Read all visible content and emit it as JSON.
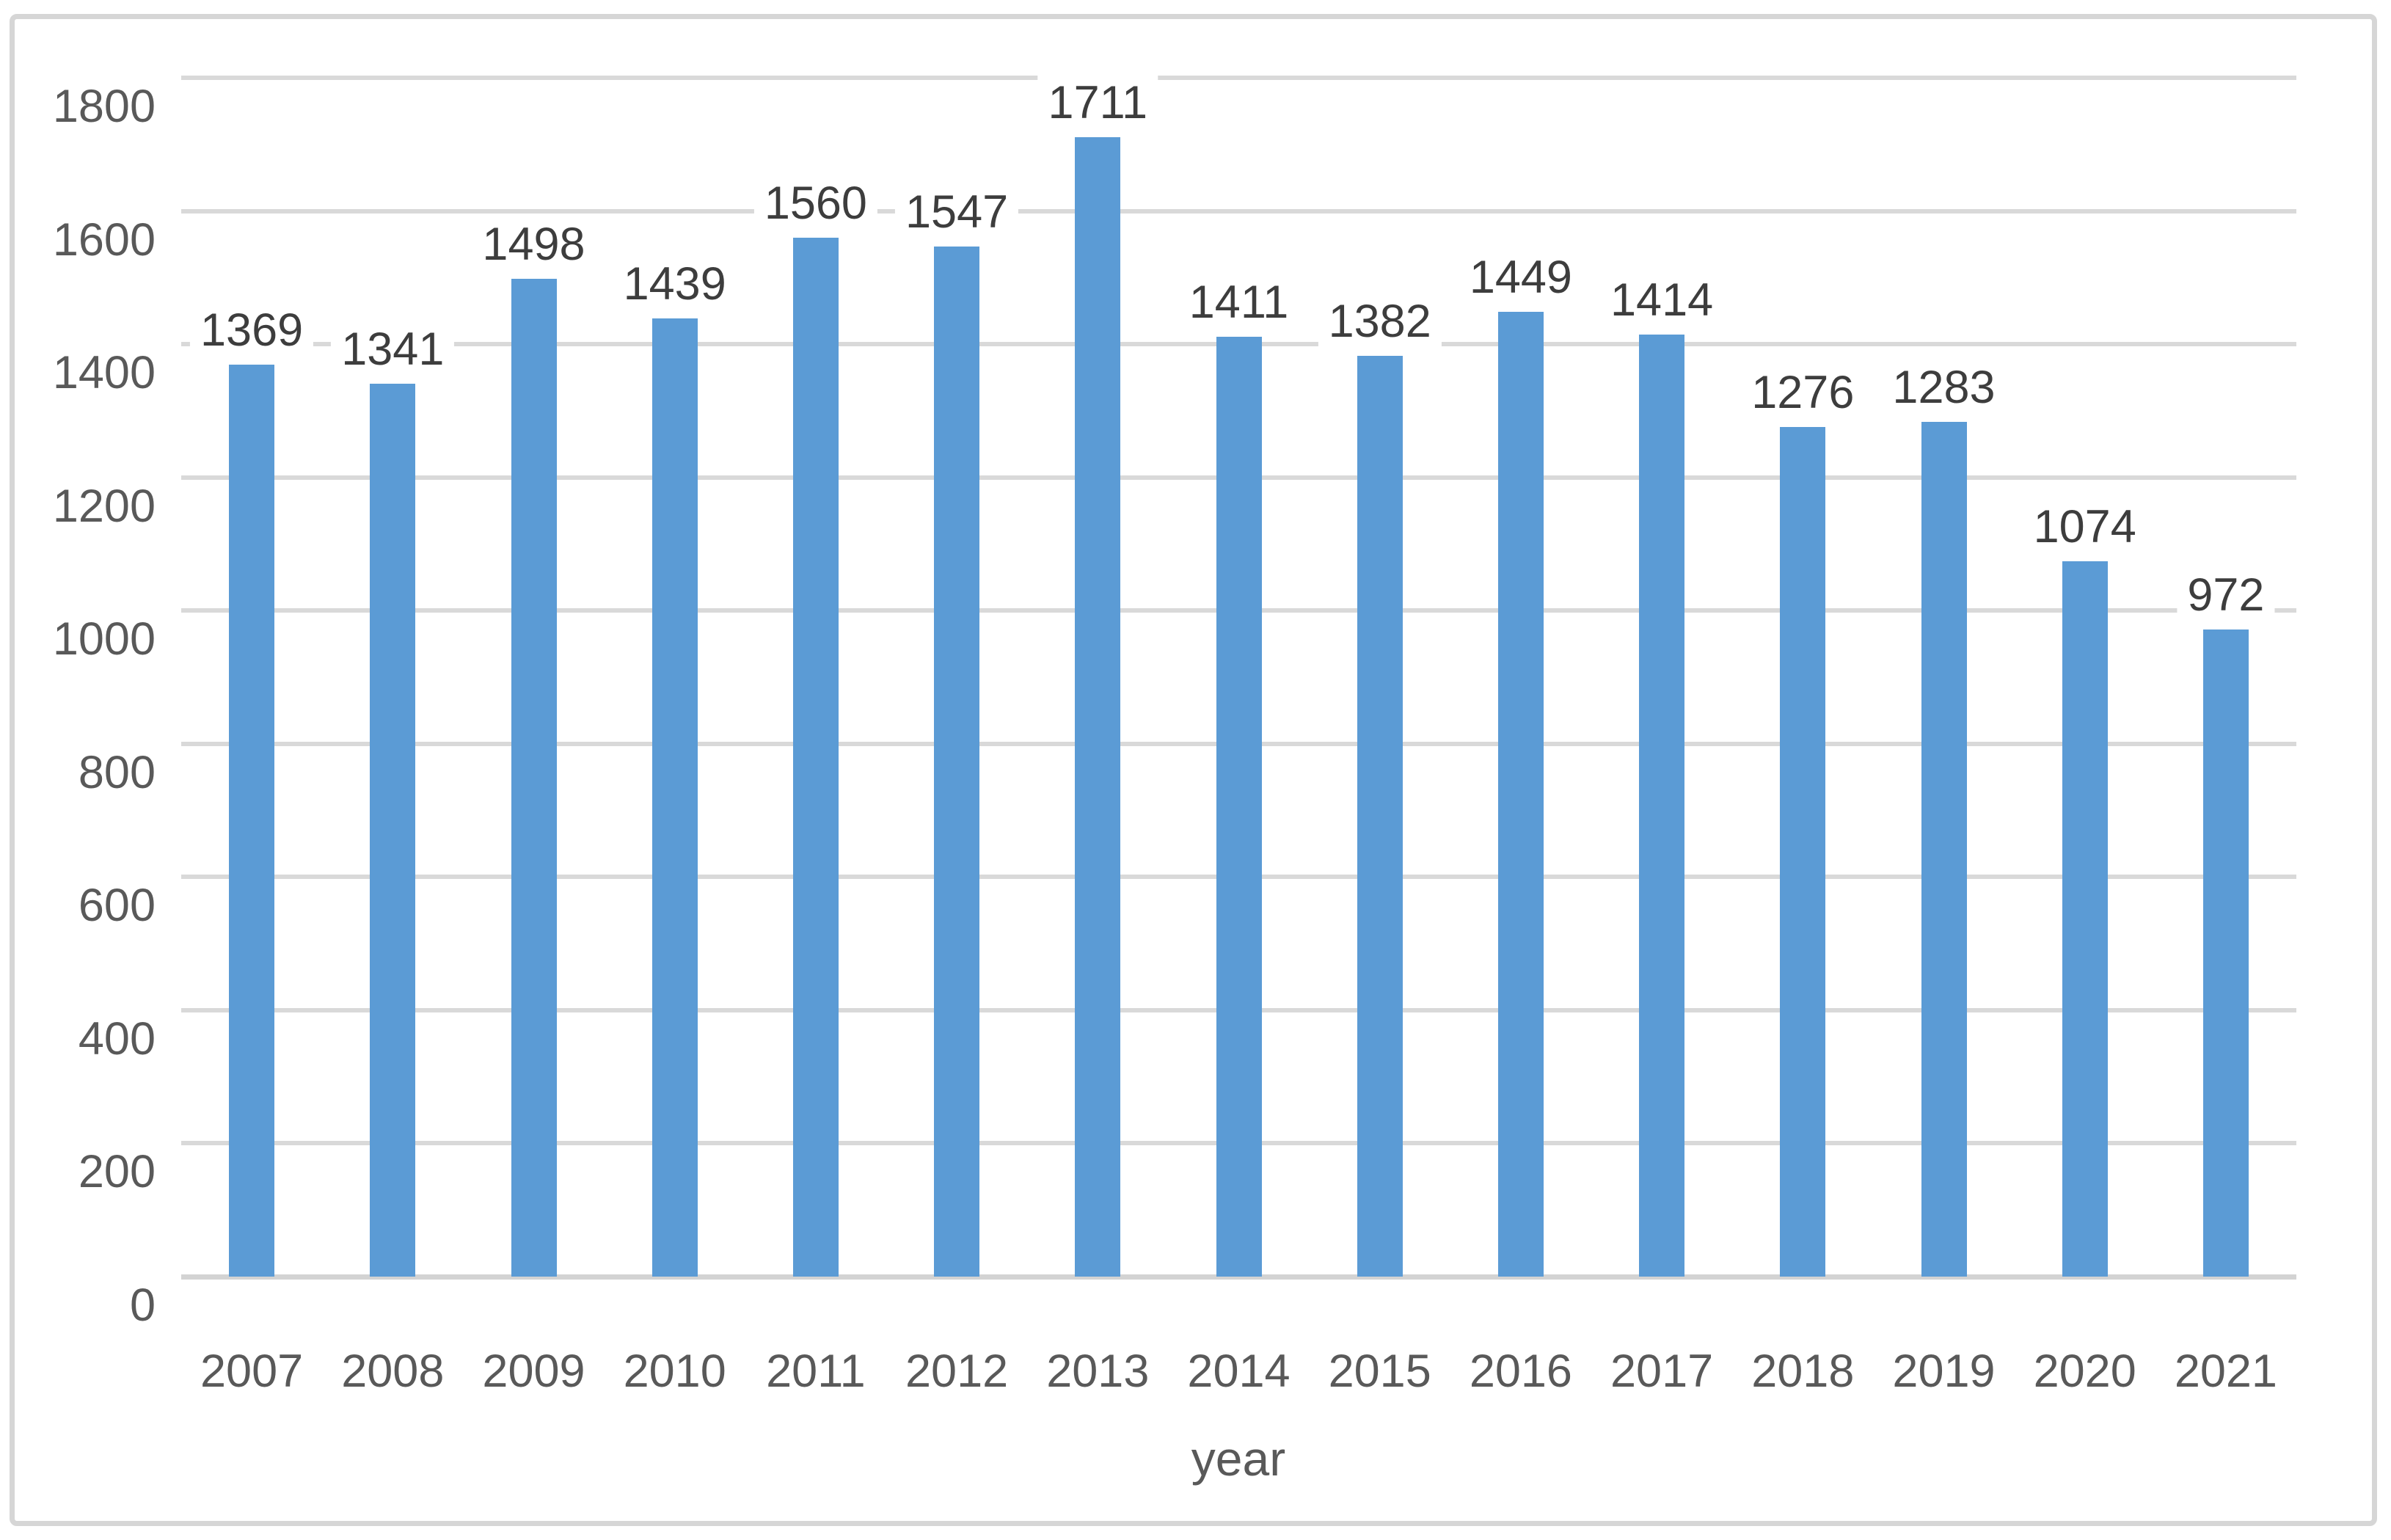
{
  "chart_data": {
    "type": "bar",
    "title": "",
    "xlabel": "year",
    "ylabel": "",
    "categories": [
      "2007",
      "2008",
      "2009",
      "2010",
      "2011",
      "2012",
      "2013",
      "2014",
      "2015",
      "2016",
      "2017",
      "2018",
      "2019",
      "2020",
      "2021"
    ],
    "values": [
      1369,
      1341,
      1498,
      1439,
      1560,
      1547,
      1711,
      1411,
      1382,
      1449,
      1414,
      1276,
      1283,
      1074,
      972
    ],
    "data_labels": [
      "1369",
      "1341",
      "1498",
      "1439",
      "1560",
      "1547",
      "1711",
      "1411",
      "1382",
      "1449",
      "1414",
      "1276",
      "1283",
      "1074",
      "972"
    ],
    "ylim": [
      0,
      1800
    ],
    "yticks": [
      0,
      200,
      400,
      600,
      800,
      1000,
      1200,
      1400,
      1600,
      1800
    ],
    "grid": "horizontal",
    "legend": "none",
    "colors": {
      "bar": "#5b9bd5",
      "gridline": "#d9d9d9",
      "axis_line": "#d3d3d3",
      "axis_text": "#595959",
      "data_label_text": "#3d3d3d",
      "frame_border": "#d6d6d6",
      "background": "#ffffff"
    }
  }
}
